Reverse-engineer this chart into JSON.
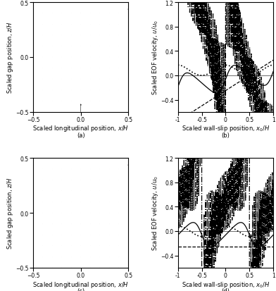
{
  "fig_width": 3.92,
  "fig_height": 4.14,
  "dpi": 100,
  "nx": 11,
  "nz": 11,
  "label_a": "(a)",
  "label_b": "(b)",
  "label_c": "(c)",
  "label_d": "(d)",
  "xlabel_left": "Scaled longitudinal position, $x/H$",
  "ylabel_left": "Scaled gap position, $z/H$",
  "xlabel_right": "Scaled wall-slip position, $x_0/H$",
  "ylabel_right": "Scaled EOF velocity, $u/u_0$",
  "fontsize": 6,
  "tick_fontsize": 5.5,
  "N_fourier": 60
}
